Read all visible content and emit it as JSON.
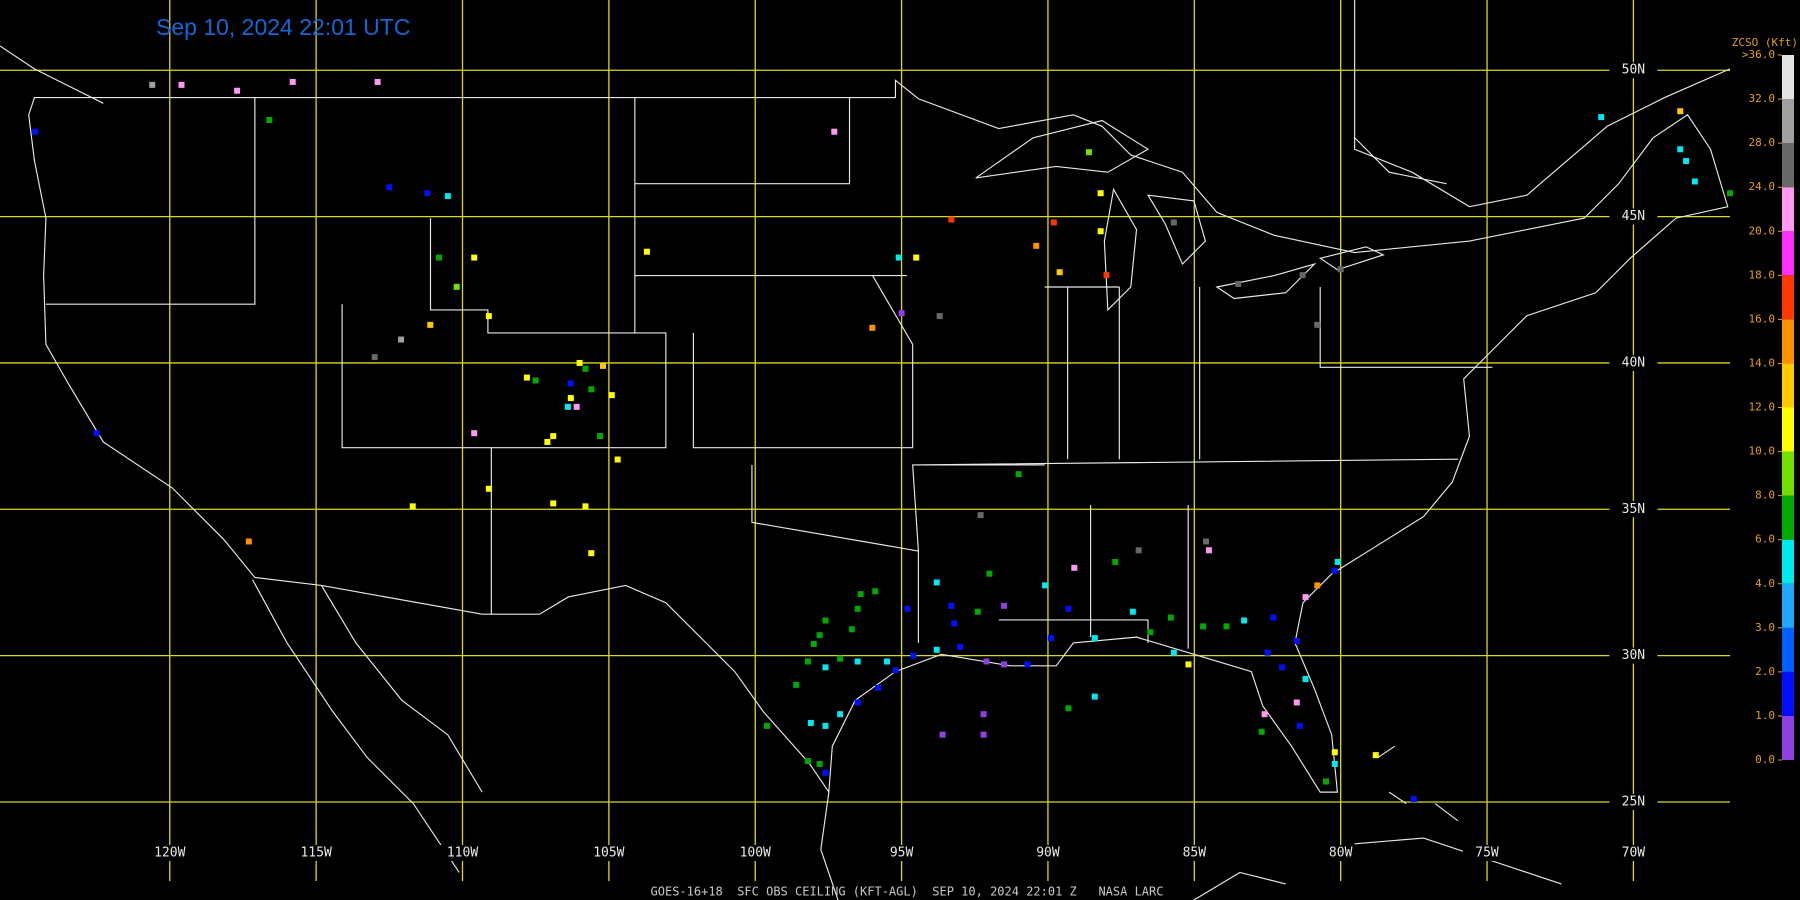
{
  "title": "Sep 10, 2024 22:01 UTC",
  "footer": "GOES-16+18  SFC OBS CEILING (KFT-AGL)  SEP 10, 2024 22:01 Z   NASA LARC",
  "map": {
    "xlim": [
      -125.8,
      -66.7
    ],
    "ylim": [
      22.3,
      52.4
    ],
    "lat_ticks": [
      {
        "value": 50,
        "label": "50N"
      },
      {
        "value": 45,
        "label": "45N"
      },
      {
        "value": 40,
        "label": "40N"
      },
      {
        "value": 35,
        "label": "35N"
      },
      {
        "value": 30,
        "label": "30N"
      },
      {
        "value": 25,
        "label": "25N"
      }
    ],
    "lon_ticks": [
      {
        "value": -120,
        "label": "120W"
      },
      {
        "value": -115,
        "label": "115W"
      },
      {
        "value": -110,
        "label": "110W"
      },
      {
        "value": -105,
        "label": "105W"
      },
      {
        "value": -100,
        "label": "100W"
      },
      {
        "value": -95,
        "label": "95W"
      },
      {
        "value": -90,
        "label": "90W"
      },
      {
        "value": -85,
        "label": "85W"
      },
      {
        "value": -80,
        "label": "80W"
      },
      {
        "value": -75,
        "label": "75W"
      },
      {
        "value": -70,
        "label": "70W"
      }
    ]
  },
  "colorbar": {
    "title": "ZCSO (Kft)",
    "ticks": [
      {
        "value": 0,
        "label": "0.0"
      },
      {
        "value": 1,
        "label": "1.0"
      },
      {
        "value": 2,
        "label": "2.0"
      },
      {
        "value": 3,
        "label": "3.0"
      },
      {
        "value": 4,
        "label": "4.0"
      },
      {
        "value": 6,
        "label": "6.0"
      },
      {
        "value": 8,
        "label": "8.0"
      },
      {
        "value": 10,
        "label": "10.0"
      },
      {
        "value": 12,
        "label": "12.0"
      },
      {
        "value": 14,
        "label": "14.0"
      },
      {
        "value": 16,
        "label": "16.0"
      },
      {
        "value": 18,
        "label": "18.0"
      },
      {
        "value": 20,
        "label": "20.0"
      },
      {
        "value": 24,
        "label": "24.0"
      },
      {
        "value": 28,
        "label": "28.0"
      },
      {
        "value": 32,
        "label": "32.0"
      },
      {
        "value": 36,
        "label": ">36.0"
      }
    ],
    "colors": [
      "#9040e0",
      "#0010ff",
      "#0060ff",
      "#20a8ff",
      "#00e8f0",
      "#00a800",
      "#70e000",
      "#ffff00",
      "#ffc800",
      "#ff9000",
      "#ff3800",
      "#ff30ff",
      "#ff98f0",
      "#686868",
      "#a0a0a0",
      "#e4e4e4"
    ]
  },
  "stations": [
    {
      "lon": -120.6,
      "lat": 49.5,
      "ceiling": 30
    },
    {
      "lon": -119.6,
      "lat": 49.5,
      "ceiling": 22
    },
    {
      "lon": -117.7,
      "lat": 49.3,
      "ceiling": 22
    },
    {
      "lon": -115.8,
      "lat": 49.6,
      "ceiling": 22
    },
    {
      "lon": -112.9,
      "lat": 49.6,
      "ceiling": 22
    },
    {
      "lon": -116.6,
      "lat": 48.3,
      "ceiling": 7
    },
    {
      "lon": -124.6,
      "lat": 47.9,
      "ceiling": 1.5
    },
    {
      "lon": -112.5,
      "lat": 46.0,
      "ceiling": 1.5
    },
    {
      "lon": -111.2,
      "lat": 45.8,
      "ceiling": 1.5
    },
    {
      "lon": -110.5,
      "lat": 45.7,
      "ceiling": 5
    },
    {
      "lon": -110.8,
      "lat": 43.6,
      "ceiling": 7
    },
    {
      "lon": -109.6,
      "lat": 43.6,
      "ceiling": 11
    },
    {
      "lon": -110.2,
      "lat": 42.6,
      "ceiling": 9
    },
    {
      "lon": -109.1,
      "lat": 41.6,
      "ceiling": 11
    },
    {
      "lon": -111.1,
      "lat": 41.3,
      "ceiling": 13
    },
    {
      "lon": -112.1,
      "lat": 40.8,
      "ceiling": 30
    },
    {
      "lon": -113.0,
      "lat": 40.2,
      "ceiling": 26
    },
    {
      "lon": -103.7,
      "lat": 43.8,
      "ceiling": 11
    },
    {
      "lon": -97.3,
      "lat": 47.9,
      "ceiling": 22
    },
    {
      "lon": -107.8,
      "lat": 39.5,
      "ceiling": 11
    },
    {
      "lon": -107.5,
      "lat": 39.4,
      "ceiling": 7
    },
    {
      "lon": -106.0,
      "lat": 40.0,
      "ceiling": 11
    },
    {
      "lon": -105.8,
      "lat": 39.8,
      "ceiling": 7
    },
    {
      "lon": -105.2,
      "lat": 39.9,
      "ceiling": 13
    },
    {
      "lon": -106.3,
      "lat": 39.3,
      "ceiling": 1.5
    },
    {
      "lon": -106.3,
      "lat": 38.8,
      "ceiling": 11
    },
    {
      "lon": -105.6,
      "lat": 39.1,
      "ceiling": 7
    },
    {
      "lon": -104.9,
      "lat": 38.9,
      "ceiling": 11
    },
    {
      "lon": -106.4,
      "lat": 38.5,
      "ceiling": 5
    },
    {
      "lon": -106.1,
      "lat": 38.5,
      "ceiling": 22
    },
    {
      "lon": -105.3,
      "lat": 37.5,
      "ceiling": 7
    },
    {
      "lon": -109.6,
      "lat": 37.6,
      "ceiling": 22
    },
    {
      "lon": -106.9,
      "lat": 37.5,
      "ceiling": 11
    },
    {
      "lon": -107.1,
      "lat": 37.3,
      "ceiling": 11
    },
    {
      "lon": -104.7,
      "lat": 36.7,
      "ceiling": 11
    },
    {
      "lon": -109.1,
      "lat": 35.7,
      "ceiling": 11
    },
    {
      "lon": -111.7,
      "lat": 35.1,
      "ceiling": 11
    },
    {
      "lon": -106.9,
      "lat": 35.2,
      "ceiling": 11
    },
    {
      "lon": -105.8,
      "lat": 35.1,
      "ceiling": 11
    },
    {
      "lon": -105.6,
      "lat": 33.5,
      "ceiling": 11
    },
    {
      "lon": -117.3,
      "lat": 33.9,
      "ceiling": 15
    },
    {
      "lon": -122.5,
      "lat": 37.6,
      "ceiling": 1.5
    },
    {
      "lon": -93.3,
      "lat": 44.9,
      "ceiling": 17
    },
    {
      "lon": -95.1,
      "lat": 43.6,
      "ceiling": 5
    },
    {
      "lon": -94.5,
      "lat": 43.6,
      "ceiling": 11
    },
    {
      "lon": -96.0,
      "lat": 41.2,
      "ceiling": 15
    },
    {
      "lon": -95.0,
      "lat": 41.7,
      "ceiling": 0.5
    },
    {
      "lon": -93.7,
      "lat": 41.6,
      "ceiling": 26
    },
    {
      "lon": -90.4,
      "lat": 44.0,
      "ceiling": 15
    },
    {
      "lon": -89.8,
      "lat": 44.8,
      "ceiling": 17
    },
    {
      "lon": -89.6,
      "lat": 43.1,
      "ceiling": 13
    },
    {
      "lon": -88.6,
      "lat": 47.2,
      "ceiling": 9
    },
    {
      "lon": -88.2,
      "lat": 45.8,
      "ceiling": 11
    },
    {
      "lon": -88.2,
      "lat": 44.5,
      "ceiling": 11
    },
    {
      "lon": -88.0,
      "lat": 43.0,
      "ceiling": 17
    },
    {
      "lon": -85.7,
      "lat": 44.8,
      "ceiling": 26
    },
    {
      "lon": -83.5,
      "lat": 42.7,
      "ceiling": 26
    },
    {
      "lon": -81.3,
      "lat": 43.0,
      "ceiling": 26
    },
    {
      "lon": -80.8,
      "lat": 41.3,
      "ceiling": 26
    },
    {
      "lon": -80.0,
      "lat": 43.2,
      "ceiling": 26
    },
    {
      "lon": -71.1,
      "lat": 48.4,
      "ceiling": 5
    },
    {
      "lon": -68.4,
      "lat": 48.6,
      "ceiling": 13
    },
    {
      "lon": -68.4,
      "lat": 47.3,
      "ceiling": 5
    },
    {
      "lon": -68.2,
      "lat": 46.9,
      "ceiling": 5
    },
    {
      "lon": -67.9,
      "lat": 46.2,
      "ceiling": 5
    },
    {
      "lon": -66.7,
      "lat": 45.8,
      "ceiling": 7
    },
    {
      "lon": -91.0,
      "lat": 36.2,
      "ceiling": 7
    },
    {
      "lon": -92.3,
      "lat": 34.8,
      "ceiling": 26
    },
    {
      "lon": -96.4,
      "lat": 32.1,
      "ceiling": 7
    },
    {
      "lon": -95.9,
      "lat": 32.2,
      "ceiling": 7
    },
    {
      "lon": -96.5,
      "lat": 31.6,
      "ceiling": 7
    },
    {
      "lon": -94.8,
      "lat": 31.6,
      "ceiling": 1.5
    },
    {
      "lon": -93.8,
      "lat": 32.5,
      "ceiling": 5
    },
    {
      "lon": -92.0,
      "lat": 32.8,
      "ceiling": 7
    },
    {
      "lon": -93.3,
      "lat": 31.7,
      "ceiling": 1.5
    },
    {
      "lon": -93.2,
      "lat": 31.1,
      "ceiling": 1.5
    },
    {
      "lon": -92.4,
      "lat": 31.5,
      "ceiling": 7
    },
    {
      "lon": -91.5,
      "lat": 31.7,
      "ceiling": 0.5
    },
    {
      "lon": -90.1,
      "lat": 32.4,
      "ceiling": 5
    },
    {
      "lon": -89.3,
      "lat": 31.6,
      "ceiling": 1.5
    },
    {
      "lon": -89.1,
      "lat": 33.0,
      "ceiling": 22
    },
    {
      "lon": -87.7,
      "lat": 33.2,
      "ceiling": 7
    },
    {
      "lon": -86.9,
      "lat": 33.6,
      "ceiling": 26
    },
    {
      "lon": -84.6,
      "lat": 33.9,
      "ceiling": 26
    },
    {
      "lon": -84.5,
      "lat": 33.6,
      "ceiling": 22
    },
    {
      "lon": -87.1,
      "lat": 31.5,
      "ceiling": 5
    },
    {
      "lon": -85.8,
      "lat": 31.3,
      "ceiling": 7
    },
    {
      "lon": -86.5,
      "lat": 30.8,
      "ceiling": 7
    },
    {
      "lon": -84.7,
      "lat": 31.0,
      "ceiling": 7
    },
    {
      "lon": -83.9,
      "lat": 31.0,
      "ceiling": 7
    },
    {
      "lon": -83.3,
      "lat": 31.2,
      "ceiling": 5
    },
    {
      "lon": -82.3,
      "lat": 31.3,
      "ceiling": 1.5
    },
    {
      "lon": -80.1,
      "lat": 33.2,
      "ceiling": 5
    },
    {
      "lon": -80.2,
      "lat": 32.9,
      "ceiling": 1.5
    },
    {
      "lon": -80.8,
      "lat": 32.4,
      "ceiling": 15
    },
    {
      "lon": -81.2,
      "lat": 32.0,
      "ceiling": 22
    },
    {
      "lon": -81.5,
      "lat": 30.5,
      "ceiling": 1.5
    },
    {
      "lon": -82.0,
      "lat": 29.6,
      "ceiling": 1.5
    },
    {
      "lon": -82.5,
      "lat": 30.1,
      "ceiling": 1.5
    },
    {
      "lon": -81.2,
      "lat": 29.2,
      "ceiling": 5
    },
    {
      "lon": -81.5,
      "lat": 28.4,
      "ceiling": 22
    },
    {
      "lon": -82.6,
      "lat": 28.0,
      "ceiling": 22
    },
    {
      "lon": -81.4,
      "lat": 27.6,
      "ceiling": 1.5
    },
    {
      "lon": -82.7,
      "lat": 27.4,
      "ceiling": 7
    },
    {
      "lon": -80.2,
      "lat": 26.7,
      "ceiling": 11
    },
    {
      "lon": -80.2,
      "lat": 26.3,
      "ceiling": 5
    },
    {
      "lon": -80.5,
      "lat": 25.7,
      "ceiling": 7
    },
    {
      "lon": -78.8,
      "lat": 26.6,
      "ceiling": 11
    },
    {
      "lon": -77.5,
      "lat": 25.1,
      "ceiling": 1.5
    },
    {
      "lon": -85.2,
      "lat": 29.7,
      "ceiling": 11
    },
    {
      "lon": -85.7,
      "lat": 30.1,
      "ceiling": 5
    },
    {
      "lon": -97.6,
      "lat": 31.2,
      "ceiling": 7
    },
    {
      "lon": -97.8,
      "lat": 30.7,
      "ceiling": 7
    },
    {
      "lon": -96.7,
      "lat": 30.9,
      "ceiling": 7
    },
    {
      "lon": -98.0,
      "lat": 30.4,
      "ceiling": 7
    },
    {
      "lon": -98.2,
      "lat": 29.8,
      "ceiling": 7
    },
    {
      "lon": -98.6,
      "lat": 29.0,
      "ceiling": 7
    },
    {
      "lon": -97.6,
      "lat": 29.6,
      "ceiling": 5
    },
    {
      "lon": -97.1,
      "lat": 29.9,
      "ceiling": 7
    },
    {
      "lon": -96.5,
      "lat": 29.8,
      "ceiling": 5
    },
    {
      "lon": -95.5,
      "lat": 29.8,
      "ceiling": 5
    },
    {
      "lon": -95.2,
      "lat": 29.5,
      "ceiling": 1.5
    },
    {
      "lon": -94.6,
      "lat": 30.0,
      "ceiling": 1.5
    },
    {
      "lon": -93.8,
      "lat": 30.2,
      "ceiling": 5
    },
    {
      "lon": -93.0,
      "lat": 30.3,
      "ceiling": 1.5
    },
    {
      "lon": -92.1,
      "lat": 29.8,
      "ceiling": 0.5
    },
    {
      "lon": -91.5,
      "lat": 29.7,
      "ceiling": 0.5
    },
    {
      "lon": -90.7,
      "lat": 29.7,
      "ceiling": 1.5
    },
    {
      "lon": -89.9,
      "lat": 30.6,
      "ceiling": 1.5
    },
    {
      "lon": -88.4,
      "lat": 30.6,
      "ceiling": 5
    },
    {
      "lon": -88.4,
      "lat": 28.6,
      "ceiling": 5
    },
    {
      "lon": -89.3,
      "lat": 28.2,
      "ceiling": 7
    },
    {
      "lon": -93.6,
      "lat": 27.3,
      "ceiling": 0.5
    },
    {
      "lon": -92.2,
      "lat": 27.3,
      "ceiling": 0.5
    },
    {
      "lon": -92.2,
      "lat": 28.0,
      "ceiling": 0.5
    },
    {
      "lon": -95.8,
      "lat": 28.9,
      "ceiling": 1.5
    },
    {
      "lon": -96.5,
      "lat": 28.4,
      "ceiling": 1.5
    },
    {
      "lon": -97.1,
      "lat": 28.0,
      "ceiling": 5
    },
    {
      "lon": -97.6,
      "lat": 27.6,
      "ceiling": 5
    },
    {
      "lon": -98.1,
      "lat": 27.7,
      "ceiling": 5
    },
    {
      "lon": -99.6,
      "lat": 27.6,
      "ceiling": 7
    },
    {
      "lon": -98.2,
      "lat": 26.4,
      "ceiling": 7
    },
    {
      "lon": -97.8,
      "lat": 26.3,
      "ceiling": 7
    },
    {
      "lon": -97.6,
      "lat": 26.0,
      "ceiling": 1.5
    }
  ]
}
